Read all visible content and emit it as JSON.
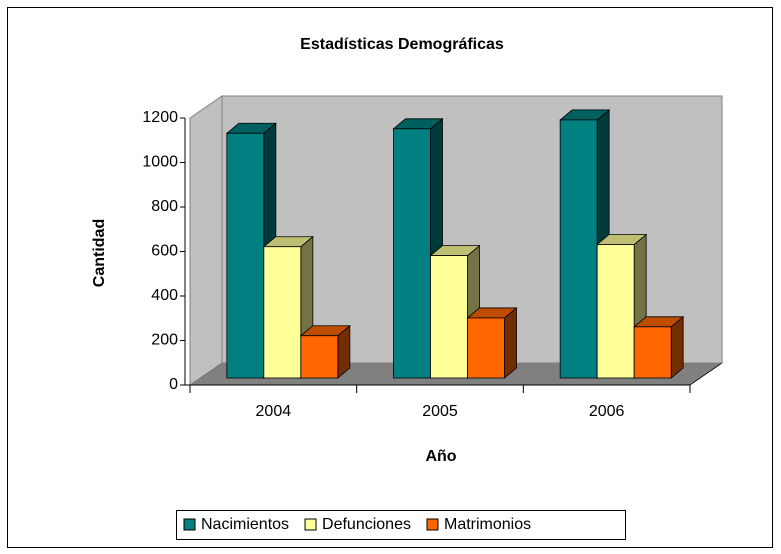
{
  "chart_data": {
    "type": "bar3d",
    "title": "Estadísticas Demográficas",
    "x_label": "Año",
    "y_label": "Cantidad",
    "categories": [
      "2004",
      "2005",
      "2006"
    ],
    "series": [
      {
        "name": "Nacimientos",
        "color": "#008080",
        "values": [
          1100,
          1120,
          1160
        ]
      },
      {
        "name": "Defunciones",
        "color": "#ffff99",
        "values": [
          590,
          550,
          600
        ]
      },
      {
        "name": "Matrimonios",
        "color": "#ff6600",
        "values": [
          190,
          270,
          230
        ]
      }
    ],
    "ylim": [
      0,
      1200
    ],
    "yticks": [
      0,
      200,
      400,
      600,
      800,
      1000,
      1200
    ],
    "legend": "bottom"
  }
}
